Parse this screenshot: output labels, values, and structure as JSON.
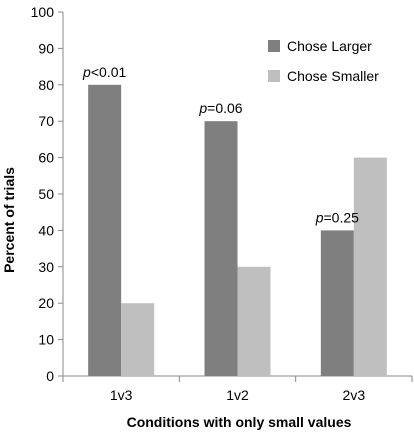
{
  "chart_data": {
    "type": "bar",
    "categories": [
      "1v3",
      "1v2",
      "2v3"
    ],
    "series": [
      {
        "name": "Chose Larger",
        "values": [
          80,
          70,
          40
        ],
        "color": "#7f7f7f"
      },
      {
        "name": "Chose Smaller",
        "values": [
          20,
          30,
          60
        ],
        "color": "#bfbfbf"
      }
    ],
    "annotations": [
      {
        "category": "1v3",
        "italic": "p",
        "text": "<0.01"
      },
      {
        "category": "1v2",
        "italic": "p",
        "text": "=0.06"
      },
      {
        "category": "2v3",
        "italic": "p",
        "text": "=0.25"
      }
    ],
    "xlabel": "Conditions with only small values",
    "ylabel": "Percent of trials",
    "ylim": [
      0,
      100
    ],
    "yticks": [
      0,
      10,
      20,
      30,
      40,
      50,
      60,
      70,
      80,
      90,
      100
    ],
    "legend_position": "top-right",
    "grid": false
  }
}
